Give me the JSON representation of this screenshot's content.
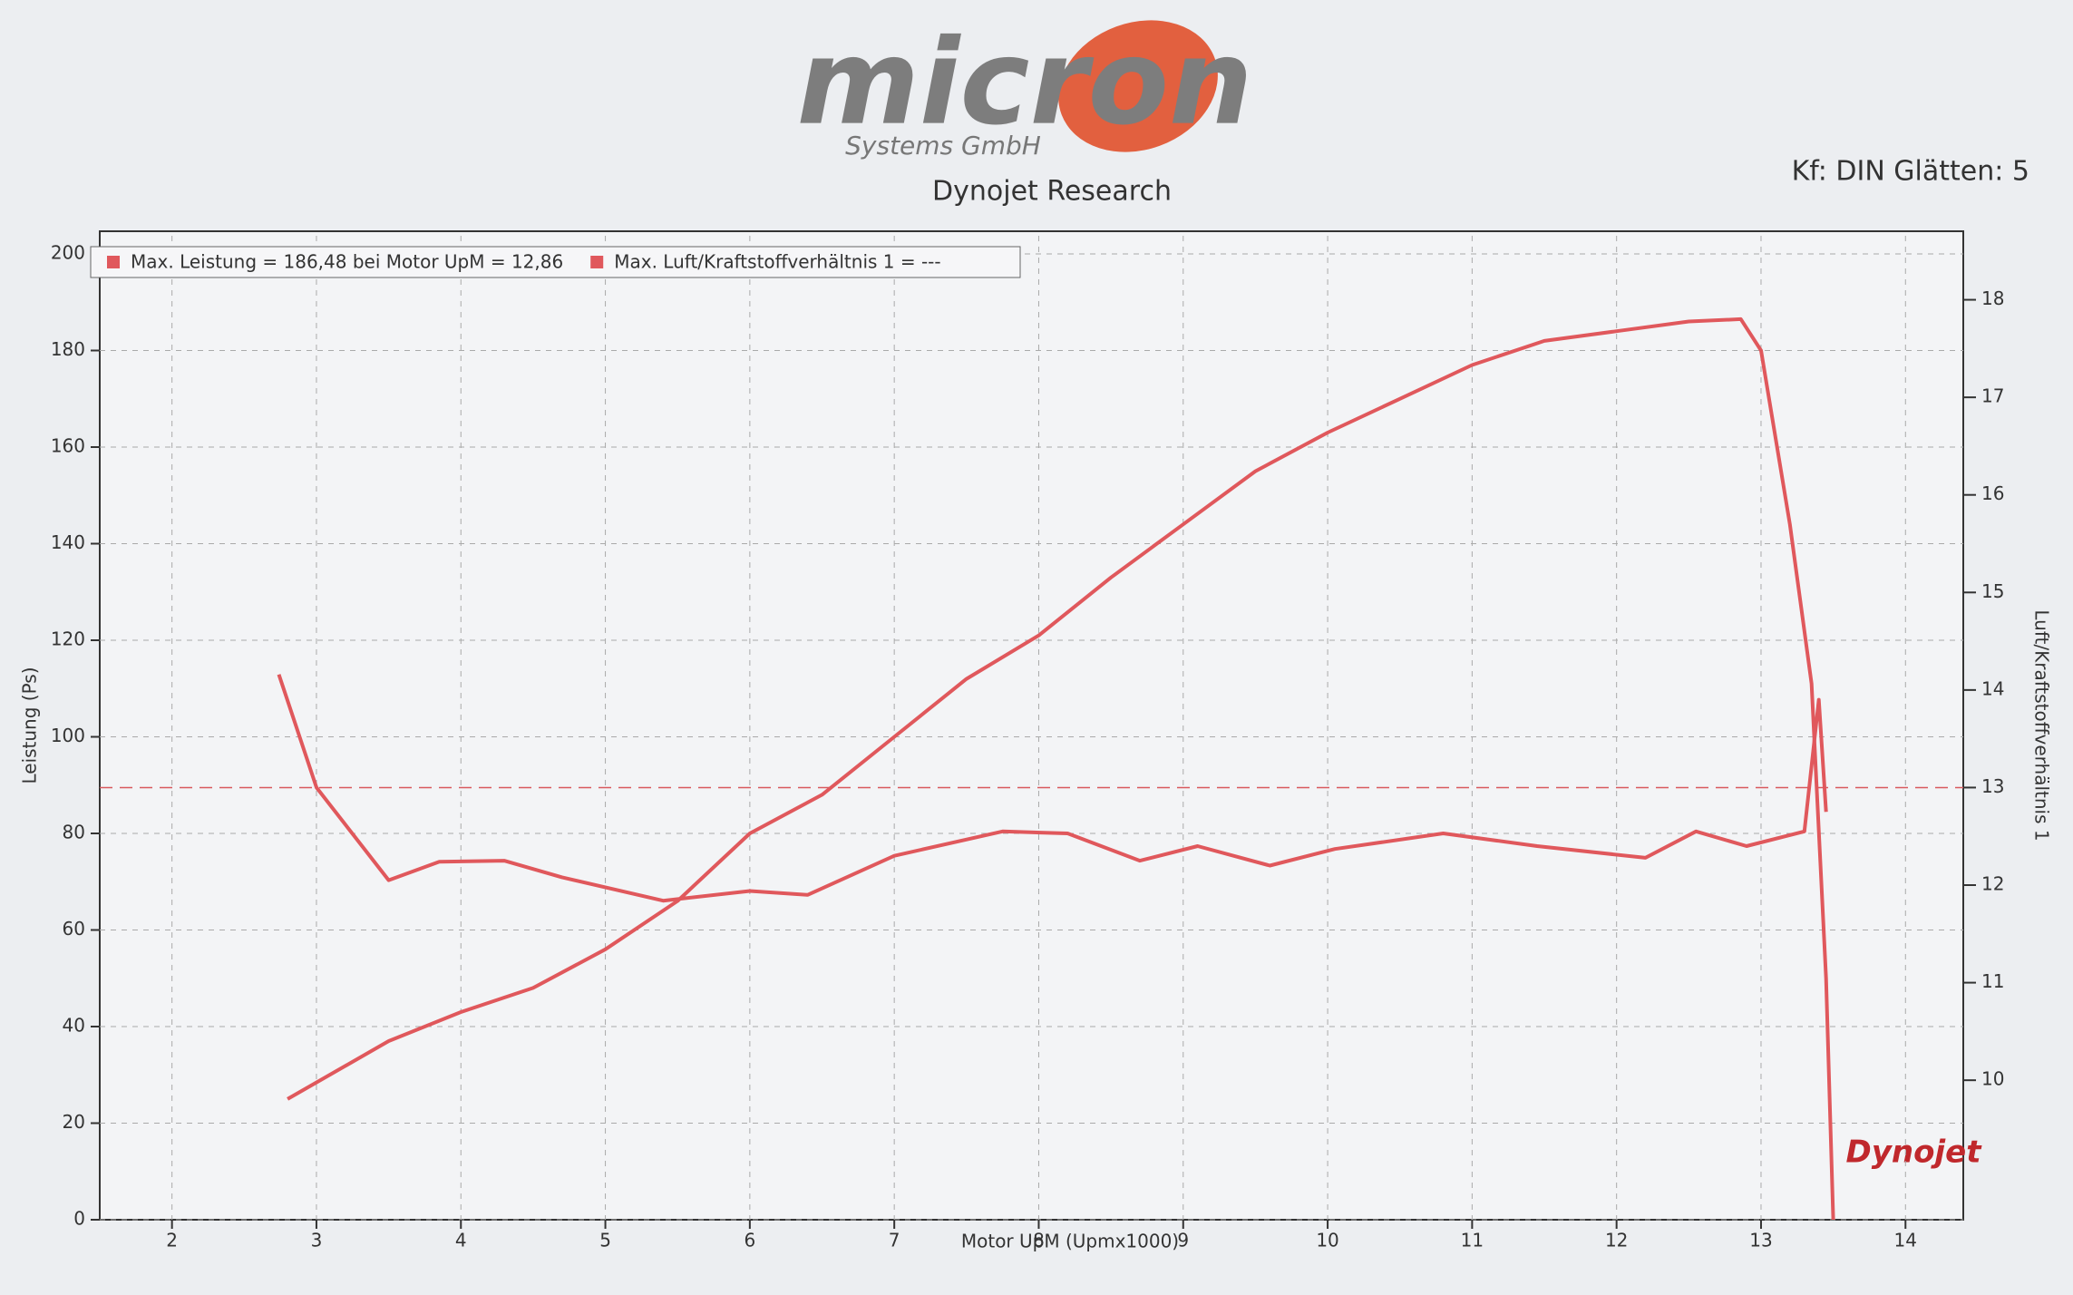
{
  "header": {
    "logo": "micron",
    "logo_subtitle": "Systems GmbH",
    "subtitle": "Dynojet Research",
    "settings": "Kf: DIN Glätten: 5"
  },
  "chart_data": {
    "type": "line",
    "xlabel": "Motor UpM (Upmx1000)",
    "ylabel": "Leistung (Ps)",
    "y2label": "Luft/Kraftstoffverhältnis 1",
    "xlim": [
      1.5,
      14.4
    ],
    "xticks": [
      2,
      3,
      4,
      5,
      6,
      7,
      8,
      9,
      10,
      11,
      12,
      13,
      14
    ],
    "ylim": [
      0,
      200
    ],
    "yticks": [
      0,
      20,
      40,
      60,
      80,
      100,
      120,
      140,
      160,
      180,
      200
    ],
    "y2lim": [
      8.57,
      18.47
    ],
    "y2ticks": [
      10,
      11,
      12,
      13,
      14,
      15,
      16,
      17,
      18
    ],
    "y2_reference": 13,
    "grid": true,
    "legend": "top-left",
    "watermark": "Dynojet",
    "series": [
      {
        "name": "Max. Leistung = 186,48 bei Motor UpM = 12,86",
        "color": "#e0585c",
        "x": [
          2.8,
          3.5,
          4,
          4.5,
          5,
          5.5,
          6,
          6.5,
          7,
          7.5,
          8,
          8.5,
          9,
          9.5,
          10,
          10.5,
          11,
          11.5,
          12,
          12.5,
          12.86,
          13,
          13.2,
          13.35,
          13.45,
          13.5
        ],
        "values": [
          25,
          37,
          43,
          48,
          56,
          66,
          80,
          88,
          100,
          112,
          121,
          133,
          144,
          155,
          163,
          170,
          177,
          182,
          184,
          186,
          186.5,
          180,
          144,
          111,
          50,
          0
        ]
      },
      {
        "name": "Max. Luft/Kraftstoffverhältnis 1 = ---",
        "color": "#e0585c",
        "axis": "y2",
        "x": [
          2.74,
          3.0,
          3.5,
          3.85,
          4.3,
          4.7,
          5.4,
          6.0,
          6.4,
          7.0,
          7.75,
          8.2,
          8.7,
          9.1,
          9.6,
          10.05,
          10.8,
          11.45,
          12.2,
          12.55,
          12.9,
          13.3,
          13.4,
          13.45
        ],
        "values": [
          14.16,
          13.0,
          12.05,
          12.24,
          12.25,
          12.08,
          11.84,
          11.94,
          11.9,
          12.3,
          12.55,
          12.53,
          12.25,
          12.4,
          12.2,
          12.37,
          12.53,
          12.4,
          12.28,
          12.55,
          12.4,
          12.55,
          13.9,
          12.75
        ]
      }
    ]
  }
}
